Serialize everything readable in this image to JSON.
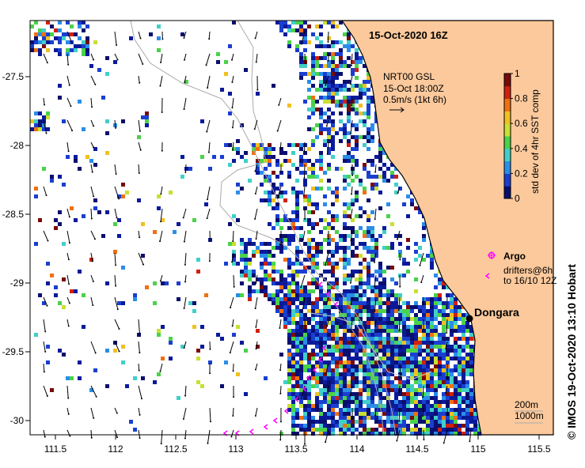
{
  "title": "15-Oct-2020 16Z",
  "current_legend": {
    "line1": "NRT00 GSL",
    "line2": "15-Oct 18:00Z",
    "line3": "0.5m/s (1kt 6h)"
  },
  "colorbar": {
    "label": "std dev of 4hr SST comp",
    "ticks": [
      "0",
      "0.2",
      "0.4",
      "0.6",
      "0.8",
      "1"
    ],
    "colors": [
      "#0a0f6e",
      "#1a3fd0",
      "#2a8ee8",
      "#3fd0c8",
      "#4ad24a",
      "#c8e030",
      "#f0c020",
      "#f07010",
      "#d02010",
      "#7a0a0a"
    ]
  },
  "legend": {
    "argo_label": "Argo",
    "drifters_line1": "drifters@6h",
    "drifters_line2": "to 16/10 12Z",
    "argo_color": "#ff00ff",
    "drifter_color": "#ff00ff"
  },
  "town": {
    "name": "Dongara"
  },
  "isobaths": {
    "deep": "200m",
    "shallow": "1000m"
  },
  "copyright": "©  IMOS 19-Oct-2020 13:10 Hobart",
  "axes": {
    "x_ticks": [
      "111.5",
      "112",
      "112.5",
      "113",
      "113.5",
      "114",
      "114.5",
      "115",
      "115.5"
    ],
    "y_ticks": [
      "-27.5",
      "-28",
      "-28.5",
      "-29",
      "-29.5",
      "-30"
    ]
  },
  "colors": {
    "land": "#fbc99c",
    "coast": "#000000",
    "isobath": "#aaaaaa"
  }
}
